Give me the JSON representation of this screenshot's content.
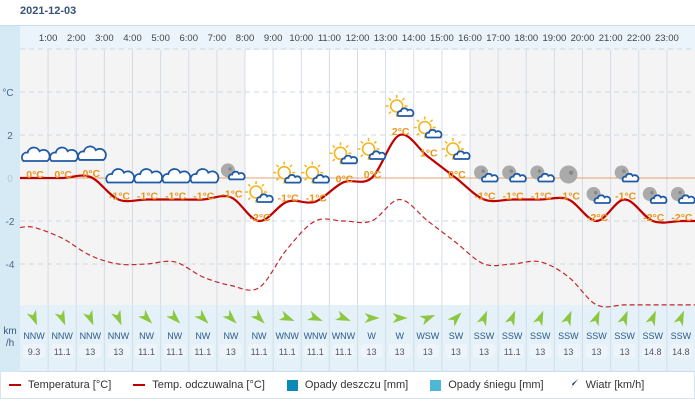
{
  "date": "2021-12-03",
  "axis": {
    "unit": "°C",
    "ticks": [
      2,
      0,
      -2,
      -4
    ],
    "wind_unit_line1": "km",
    "wind_unit_line2": "/h"
  },
  "hours": [
    "1:00",
    "2:00",
    "3:00",
    "4:00",
    "5:00",
    "6:00",
    "7:00",
    "8:00",
    "9:00",
    "10:00",
    "11:00",
    "12:00",
    "13:00",
    "14:00",
    "15:00",
    "16:00",
    "17:00",
    "18:00",
    "19:00",
    "20:00",
    "21:00",
    "22:00",
    "23:00"
  ],
  "columns": {
    "temp_labels": [
      "0°C",
      "0°C",
      "0°C",
      "-1°C",
      "-1°C",
      "-1°C",
      "-1°C",
      "-1°C",
      "-2°C",
      "-1°C",
      "-1°C",
      "0°C",
      "0°C",
      "2°C",
      "1°C",
      "0°C",
      "-1°C",
      "-1°C",
      "-1°C",
      "-1°C",
      "-2°C",
      "-1°C",
      "-2°C",
      "-2°C"
    ],
    "temperature": [
      0,
      0,
      0.05,
      -1,
      -1,
      -1,
      -1,
      -0.9,
      -2,
      -1.1,
      -1.1,
      -0.2,
      0,
      2,
      1,
      0,
      -1,
      -1,
      -1,
      -1,
      -2,
      -1,
      -2,
      -2
    ],
    "feels_like": [
      -2.3,
      -2.8,
      -3.6,
      -4,
      -4,
      -3.9,
      -4.6,
      -5,
      -5.1,
      -3.3,
      -2,
      -2,
      -2,
      -1,
      -2,
      -3,
      -4,
      -4,
      -3.9,
      -4.6,
      -5.9,
      -5.9,
      -5.9,
      -5.9
    ],
    "icons": [
      "cloud",
      "cloud",
      "cloud",
      "cloud",
      "cloud",
      "cloud",
      "cloud",
      "moon-cloud",
      "sun-cloud",
      "sun-cloud",
      "sun-cloud",
      "sun-cloud",
      "sun-cloud",
      "sun-cloud",
      "sun-cloud",
      "sun-cloud",
      "moon-cloud",
      "moon-cloud",
      "moon-cloud",
      "moon",
      "moon-cloud",
      "moon-cloud",
      "moon-cloud",
      "moon-cloud"
    ],
    "daylight": [
      "night",
      "night",
      "night",
      "night",
      "night",
      "night",
      "night",
      "night",
      "day",
      "day",
      "day",
      "day",
      "day",
      "day",
      "day",
      "day",
      "night",
      "night",
      "night",
      "night",
      "night",
      "night",
      "night",
      "night"
    ],
    "wind_dir": [
      "NNW",
      "NNW",
      "NNW",
      "NNW",
      "NW",
      "NW",
      "NW",
      "NW",
      "NW",
      "WNW",
      "WNW",
      "WNW",
      "W",
      "W",
      "WSW",
      "SW",
      "SSW",
      "SSW",
      "SSW",
      "SSW",
      "SSW",
      "SSW",
      "SSW",
      "SSW"
    ],
    "wind_speed": [
      "9.3",
      "11.1",
      "13",
      "13",
      "11.1",
      "11.1",
      "11.1",
      "13",
      "11.1",
      "11.1",
      "11.1",
      "11.1",
      "13",
      "13",
      "13",
      "13",
      "13",
      "11.1",
      "13",
      "13",
      "13",
      "13",
      "14.8",
      "14.8"
    ]
  },
  "legend": {
    "temperature": "Temperatura [°C]",
    "feels_like": "Temp. odczuwalna [°C]",
    "rain": "Opady deszczu [mm]",
    "snow": "Opady śniegu [mm]",
    "wind": "Wiatr [km/h]"
  },
  "colors": {
    "temperature": "#c00000",
    "rain": "#0a8bb5",
    "snow": "#4fb7d6",
    "wind": "#8dc63f",
    "temp_label": "#e8961c",
    "cloud": "#1f5aa6",
    "sun": "#f5b51b",
    "moon": "#aaaaaa"
  }
}
